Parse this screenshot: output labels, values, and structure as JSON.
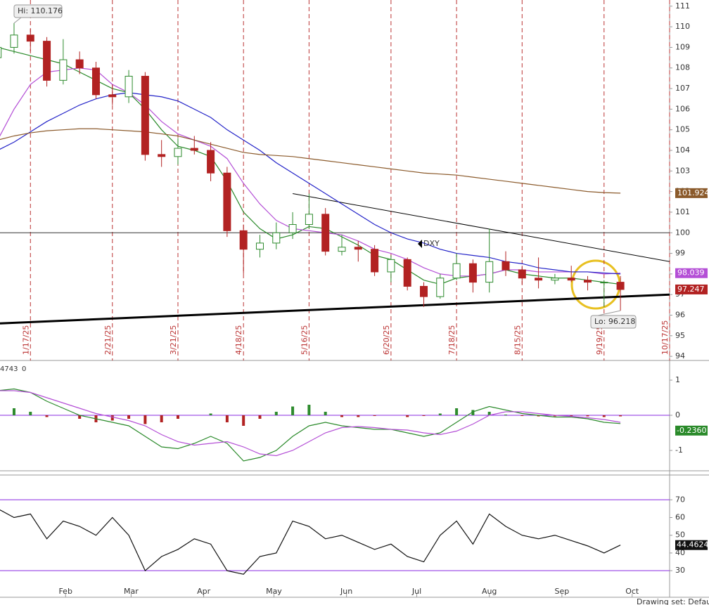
{
  "chart_data": {
    "type": "candlestick",
    "symbol": "DXY",
    "x": [
      "1/3/25",
      "1/10/25",
      "1/17/25",
      "1/24/25",
      "1/31/25",
      "2/7/25",
      "2/14/25",
      "2/21/25",
      "2/28/25",
      "3/7/25",
      "3/14/25",
      "3/21/25",
      "3/28/25",
      "4/4/25",
      "4/11/25",
      "4/18/25",
      "4/25/25",
      "5/2/25",
      "5/9/25",
      "5/16/25",
      "5/23/25",
      "5/30/25",
      "6/6/25",
      "6/13/25",
      "6/20/25",
      "6/27/25",
      "7/4/25",
      "7/11/25",
      "7/18/25",
      "7/25/25",
      "8/1/25",
      "8/8/25",
      "8/15/25",
      "8/22/25",
      "8/29/25",
      "9/5/25",
      "9/12/25",
      "9/19/25",
      "9/26/25"
    ],
    "open": [
      108.5,
      109.0,
      109.6,
      109.3,
      107.4,
      108.4,
      108.0,
      106.7,
      106.6,
      107.6,
      103.8,
      103.7,
      104.1,
      104.0,
      102.9,
      100.1,
      99.2,
      99.5,
      100.0,
      100.4,
      100.9,
      99.1,
      99.3,
      99.2,
      98.1,
      98.7,
      97.4,
      96.9,
      97.8,
      98.5,
      97.6,
      98.6,
      98.2,
      97.8,
      97.7,
      97.8,
      97.7,
      97.6,
      97.6
    ],
    "high": [
      109.5,
      110.176,
      109.9,
      109.5,
      109.4,
      108.8,
      108.3,
      107.2,
      107.9,
      107.8,
      104.5,
      104.6,
      104.7,
      104.4,
      103.2,
      100.4,
      99.9,
      100.5,
      101.0,
      101.9,
      101.2,
      99.9,
      99.6,
      99.4,
      98.9,
      98.8,
      97.6,
      98.0,
      99.0,
      98.7,
      100.2,
      99.1,
      98.4,
      98.8,
      98.0,
      98.4,
      97.9,
      97.7,
      97.9
    ],
    "low": [
      107.8,
      108.7,
      108.8,
      107.1,
      107.2,
      107.7,
      106.5,
      106.2,
      106.3,
      103.5,
      103.2,
      103.3,
      103.8,
      102.5,
      99.8,
      98.0,
      98.8,
      99.2,
      99.7,
      100.2,
      98.9,
      98.9,
      98.6,
      97.9,
      97.6,
      97.2,
      96.4,
      96.8,
      97.7,
      97.1,
      97.1,
      97.9,
      97.5,
      97.3,
      97.5,
      97.6,
      97.2,
      96.4,
      96.218
    ],
    "close": [
      109.0,
      109.6,
      109.3,
      107.4,
      108.4,
      108.0,
      106.7,
      106.6,
      107.6,
      103.8,
      103.7,
      104.1,
      104.0,
      102.9,
      100.1,
      99.2,
      99.5,
      100.0,
      100.4,
      100.9,
      99.1,
      99.3,
      99.2,
      98.1,
      98.7,
      97.4,
      96.9,
      97.8,
      98.5,
      97.6,
      98.6,
      98.2,
      97.8,
      97.7,
      97.8,
      97.7,
      97.6,
      97.6,
      97.247
    ],
    "up_color": "#2e8b2e",
    "down_color": "#b22222",
    "series": [
      {
        "color": "#2a8a2a",
        "values": [
          109,
          108.8,
          108.6,
          108.4,
          108.2,
          107.8,
          107.4,
          107,
          106.8,
          106,
          105,
          104.2,
          104,
          103.7,
          102.5,
          101.0,
          100.2,
          99.7,
          99.9,
          100.3,
          100.2,
          99.8,
          99.4,
          98.9,
          98.7,
          98.2,
          97.7,
          97.5,
          97.8,
          97.9,
          98.0,
          98.2,
          98.0,
          97.9,
          97.8,
          97.8,
          97.7,
          97.6,
          97.5
        ]
      },
      {
        "color": "#b44fd6",
        "values": [
          104.5,
          106,
          107.2,
          107.8,
          107.9,
          108,
          107.9,
          107.2,
          106.8,
          106.2,
          105.4,
          104.8,
          104.5,
          104.2,
          103.6,
          102.4,
          101.4,
          100.6,
          100.2,
          100.1,
          100,
          99.9,
          99.6,
          99.2,
          99.0,
          98.7,
          98.3,
          98.0,
          97.9,
          97.9,
          98.0,
          98.2,
          98.2,
          98.1,
          98.1,
          98.1,
          98.1,
          98.0,
          98.039
        ]
      },
      {
        "color": "#2222c8",
        "values": [
          104.0,
          104.4,
          104.9,
          105.4,
          105.8,
          106.2,
          106.5,
          106.7,
          106.8,
          106.7,
          106.6,
          106.4,
          106.0,
          105.6,
          105.0,
          104.5,
          104.0,
          103.4,
          102.9,
          102.4,
          101.9,
          101.4,
          100.9,
          100.4,
          100.0,
          99.7,
          99.5,
          99.2,
          99.0,
          98.9,
          98.8,
          98.6,
          98.5,
          98.3,
          98.2,
          98.1,
          98.1,
          98.05,
          98.0
        ]
      },
      {
        "color": "#8b5a2b",
        "values": [
          104.5,
          104.7,
          104.85,
          104.95,
          105.0,
          105.05,
          105.05,
          105.0,
          104.95,
          104.9,
          104.8,
          104.7,
          104.5,
          104.3,
          104.1,
          103.9,
          103.8,
          103.75,
          103.7,
          103.6,
          103.5,
          103.4,
          103.3,
          103.2,
          103.1,
          103.0,
          102.9,
          102.85,
          102.8,
          102.7,
          102.6,
          102.5,
          102.4,
          102.3,
          102.2,
          102.1,
          102.0,
          101.95,
          101.924
        ]
      }
    ],
    "xlim": [
      "1/4/25",
      "10/17/25"
    ],
    "ylim": [
      93.8,
      111.3
    ],
    "yticks": [
      94,
      95,
      96,
      97,
      98,
      99,
      100,
      101,
      102,
      103,
      104,
      105,
      106,
      107,
      108,
      109,
      110,
      111
    ],
    "xticks": [
      "1/17/25",
      "2/21/25",
      "3/21/25",
      "4/18/25",
      "5/16/25",
      "6/20/25",
      "7/18/25",
      "8/15/25",
      "9/19/25",
      "10/17/25"
    ],
    "month_ticks": [
      {
        "value": "2/1/25",
        "label": "Feb"
      },
      {
        "value": "3/1/25",
        "label": "Mar"
      },
      {
        "value": "4/1/25",
        "label": "Apr"
      },
      {
        "value": "5/1/25",
        "label": "May"
      },
      {
        "value": "6/1/25",
        "label": "Jun"
      },
      {
        "value": "7/1/25",
        "label": "Jul"
      },
      {
        "value": "8/1/25",
        "label": "Aug"
      },
      {
        "value": "9/1/25",
        "label": "Sep"
      },
      {
        "value": "10/1/25",
        "label": "Oct"
      }
    ],
    "hline": 100,
    "trendlines": [
      {
        "x": [
          "5/9/25",
          "10/17/25"
        ],
        "y": [
          101.9,
          98.6
        ],
        "width": 1
      },
      {
        "x": [
          "1/4/25",
          "10/17/25"
        ],
        "y": [
          95.6,
          97.0
        ],
        "width": 3
      }
    ],
    "high_label": "Hi: 110.176",
    "low_label": "Lo: 96.218",
    "macd": {
      "header": [
        "4743",
        "0"
      ],
      "ylim": [
        -1.5,
        1.5
      ],
      "yticks": [
        1,
        0,
        -1
      ],
      "histogram": [
        0.1,
        0.2,
        0.1,
        -0.05,
        0,
        -0.1,
        -0.2,
        -0.15,
        -0.1,
        -0.25,
        -0.2,
        -0.1,
        0,
        0.05,
        -0.2,
        -0.3,
        -0.1,
        0.1,
        0.25,
        0.3,
        0.1,
        -0.05,
        -0.05,
        -0.02,
        0,
        -0.05,
        -0.02,
        0.05,
        0.2,
        0.15,
        0.1,
        0.02,
        -0.02,
        -0.03,
        -0.03,
        -0.02,
        -0.03,
        -0.05,
        -0.03
      ],
      "line": {
        "color": "#2a8a2a",
        "values": [
          0.7,
          0.75,
          0.65,
          0.4,
          0.2,
          0.0,
          -0.1,
          -0.2,
          -0.3,
          -0.6,
          -0.9,
          -0.95,
          -0.8,
          -0.6,
          -0.8,
          -1.3,
          -1.2,
          -1.0,
          -0.6,
          -0.3,
          -0.2,
          -0.3,
          -0.35,
          -0.4,
          -0.4,
          -0.5,
          -0.6,
          -0.5,
          -0.2,
          0.1,
          0.25,
          0.15,
          0.05,
          0.0,
          -0.05,
          -0.05,
          -0.1,
          -0.2,
          -0.236
        ],
        "value_label": "-0.2360"
      },
      "signal": {
        "color": "#b44fd6",
        "values": [
          0.7,
          0.7,
          0.65,
          0.5,
          0.35,
          0.2,
          0.05,
          -0.05,
          -0.15,
          -0.3,
          -0.55,
          -0.75,
          -0.85,
          -0.8,
          -0.75,
          -0.9,
          -1.1,
          -1.15,
          -1.0,
          -0.75,
          -0.5,
          -0.35,
          -0.32,
          -0.35,
          -0.4,
          -0.42,
          -0.5,
          -0.55,
          -0.45,
          -0.25,
          0.0,
          0.1,
          0.1,
          0.05,
          0.0,
          -0.03,
          -0.07,
          -0.12,
          -0.2
        ]
      }
    },
    "rsi": {
      "ylim": [
        15,
        84
      ],
      "yticks": [
        30,
        40,
        50,
        60,
        70
      ],
      "levels": [
        70,
        30
      ],
      "values": [
        65,
        60,
        62,
        48,
        58,
        55,
        50,
        60,
        50,
        30,
        38,
        42,
        48,
        45,
        30,
        28,
        38,
        40,
        58,
        55,
        48,
        50,
        46,
        42,
        45,
        38,
        35,
        50,
        58,
        45,
        62,
        55,
        50,
        48,
        50,
        47,
        44,
        40,
        44.4624
      ]
    },
    "toolbar": "Drawing set: Default"
  }
}
